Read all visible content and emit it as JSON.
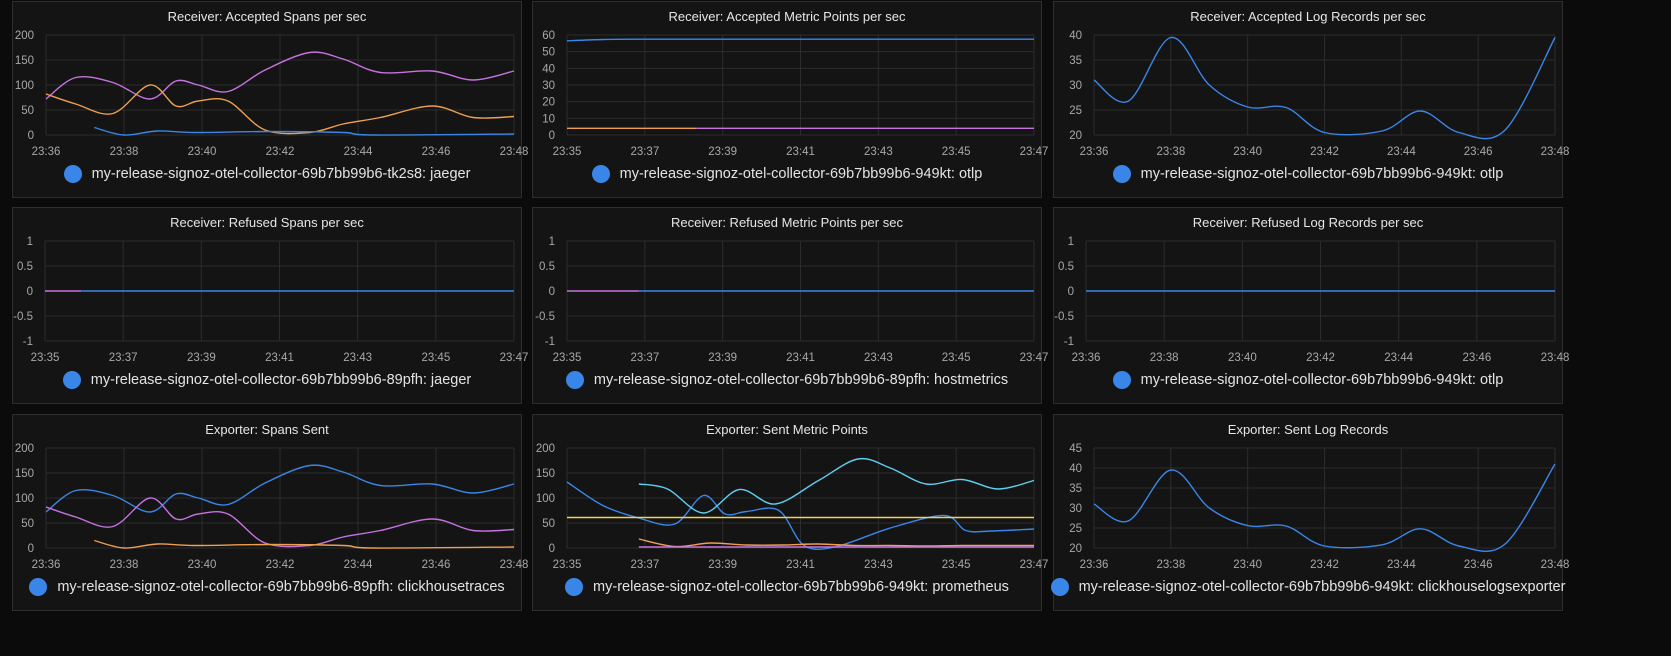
{
  "colors": {
    "blue": "#3a86e8",
    "purple": "#c673e0",
    "orange": "#eea04e",
    "cyan": "#5ed0f0",
    "yellow": "#f5d14b",
    "grid": "#2c2c2e"
  },
  "panels": [
    {
      "id": "accepted-spans",
      "title": "Receiver: Accepted Spans per sec",
      "legend": {
        "label": "my-release-signoz-otel-collector-69b7bb99b6-tk2s8: jaeger",
        "color": "#3a86e8"
      },
      "chart_data": {
        "type": "line",
        "title": "Receiver: Accepted Spans per sec",
        "y_ticks": [
          "200",
          "150",
          "100",
          "50",
          "0"
        ],
        "ylim": [
          0,
          200
        ],
        "x_ticks": [
          "23:36",
          "23:38",
          "23:40",
          "23:42",
          "23:44",
          "23:46",
          "23:48"
        ],
        "xlim": [
          0,
          12.6
        ],
        "series": [
          {
            "color": "#c673e0",
            "x": [
              0,
              0.8,
              1.8,
              2.8,
              3.5,
              4.1,
              4.9,
              5.9,
              7.1,
              8.0,
              9.0,
              10.4,
              11.5,
              12.6
            ],
            "y": [
              72,
              115,
              105,
              72,
              108,
              100,
              87,
              130,
              165,
              152,
              125,
              128,
              110,
              128
            ]
          },
          {
            "color": "#eea04e",
            "x": [
              0,
              0.8,
              1.8,
              2.8,
              3.5,
              4.1,
              4.9,
              5.9,
              7.1,
              8.0,
              9.0,
              10.4,
              11.5,
              12.6
            ],
            "y": [
              82,
              62,
              43,
              100,
              58,
              68,
              68,
              10,
              5,
              22,
              35,
              58,
              35,
              37
            ]
          },
          {
            "color": "#3a86e8",
            "x": [
              1.3,
              2.1,
              3.0,
              4.0,
              6.0,
              8.0,
              8.8,
              12.6
            ],
            "y": [
              15,
              0,
              8,
              5,
              7,
              5,
              0,
              2
            ]
          }
        ]
      }
    },
    {
      "id": "accepted-metric-points",
      "title": "Receiver: Accepted Metric Points per sec",
      "legend": {
        "label": "my-release-signoz-otel-collector-69b7bb99b6-949kt: otlp",
        "color": "#3a86e8"
      },
      "chart_data": {
        "type": "line",
        "title": "Receiver: Accepted Metric Points per sec",
        "y_ticks": [
          "60",
          "50",
          "40",
          "30",
          "20",
          "10",
          "0"
        ],
        "ylim": [
          0,
          60
        ],
        "x_ticks": [
          "23:35",
          "23:37",
          "23:39",
          "23:41",
          "23:43",
          "23:45",
          "23:47"
        ],
        "xlim": [
          0,
          13
        ],
        "series": [
          {
            "color": "#3a86e8",
            "x": [
              0,
              1,
              2,
              4,
              13
            ],
            "y": [
              56.5,
              57.3,
              57.5,
              57.5,
              57.5
            ]
          },
          {
            "color": "#eea04e",
            "x": [
              0,
              3.6
            ],
            "y": [
              4,
              4
            ]
          },
          {
            "color": "#c673e0",
            "x": [
              3.6,
              13
            ],
            "y": [
              4,
              4
            ]
          }
        ]
      }
    },
    {
      "id": "accepted-log-records",
      "title": "Receiver: Accepted Log Records per sec",
      "legend": {
        "label": "my-release-signoz-otel-collector-69b7bb99b6-949kt: otlp",
        "color": "#3a86e8"
      },
      "chart_data": {
        "type": "line",
        "title": "Receiver: Accepted Log Records per sec",
        "y_ticks": [
          "40",
          "35",
          "30",
          "25",
          "20"
        ],
        "ylim": [
          20,
          40
        ],
        "x_ticks": [
          "23:36",
          "23:38",
          "23:40",
          "23:42",
          "23:44",
          "23:46",
          "23:48"
        ],
        "xlim": [
          0,
          12
        ],
        "series": [
          {
            "color": "#3a86e8",
            "x": [
              0,
              0.9,
              2,
              3,
              4,
              5,
              6,
              7.5,
              8.5,
              9.5,
              10.7,
              12
            ],
            "y": [
              31,
              26.8,
              39.5,
              30,
              25.6,
              25.5,
              20.5,
              20.8,
              24.8,
              20.5,
              21,
              39.5
            ]
          }
        ]
      }
    },
    {
      "id": "refused-spans",
      "title": "Receiver: Refused Spans per sec",
      "legend": {
        "label": "my-release-signoz-otel-collector-69b7bb99b6-89pfh: jaeger",
        "color": "#3a86e8"
      },
      "chart_data": {
        "type": "line",
        "title": "Receiver: Refused Spans per sec",
        "y_ticks": [
          "1",
          "0.5",
          "0",
          "-0.5",
          "-1"
        ],
        "ylim": [
          -1,
          1
        ],
        "x_ticks": [
          "23:35",
          "23:37",
          "23:39",
          "23:41",
          "23:43",
          "23:45",
          "23:47"
        ],
        "xlim": [
          0,
          13
        ],
        "series": [
          {
            "color": "#c673e0",
            "x": [
              0,
              1
            ],
            "y": [
              0,
              0
            ]
          },
          {
            "color": "#3a86e8",
            "x": [
              1,
              13
            ],
            "y": [
              0,
              0
            ]
          }
        ]
      }
    },
    {
      "id": "refused-metric-points",
      "title": "Receiver: Refused Metric Points per sec",
      "legend": {
        "label": "my-release-signoz-otel-collector-69b7bb99b6-89pfh: hostmetrics",
        "color": "#3a86e8"
      },
      "chart_data": {
        "type": "line",
        "title": "Receiver: Refused Metric Points per sec",
        "y_ticks": [
          "1",
          "0.5",
          "0",
          "-0.5",
          "-1"
        ],
        "ylim": [
          -1,
          1
        ],
        "x_ticks": [
          "23:35",
          "23:37",
          "23:39",
          "23:41",
          "23:43",
          "23:45",
          "23:47"
        ],
        "xlim": [
          0,
          13
        ],
        "series": [
          {
            "color": "#c673e0",
            "x": [
              0,
              2
            ],
            "y": [
              0,
              0
            ]
          },
          {
            "color": "#3a86e8",
            "x": [
              2,
              13
            ],
            "y": [
              0,
              0
            ]
          }
        ]
      }
    },
    {
      "id": "refused-log-records",
      "title": "Receiver: Refused Log Records per sec",
      "legend": {
        "label": "my-release-signoz-otel-collector-69b7bb99b6-949kt: otlp",
        "color": "#3a86e8"
      },
      "chart_data": {
        "type": "line",
        "title": "Receiver: Refused Log Records per sec",
        "y_ticks": [
          "1",
          "0.5",
          "0",
          "-0.5",
          "-1"
        ],
        "ylim": [
          -1,
          1
        ],
        "x_ticks": [
          "23:36",
          "23:38",
          "23:40",
          "23:42",
          "23:44",
          "23:46",
          "23:48"
        ],
        "xlim": [
          0,
          12
        ],
        "series": [
          {
            "color": "#3a86e8",
            "x": [
              0,
              12
            ],
            "y": [
              0,
              0
            ]
          }
        ]
      }
    },
    {
      "id": "spans-sent",
      "title": "Exporter: Spans Sent",
      "legend": {
        "label": "my-release-signoz-otel-collector-69b7bb99b6-89pfh: clickhousetraces",
        "color": "#3a86e8"
      },
      "chart_data": {
        "type": "line",
        "title": "Exporter: Spans Sent",
        "y_ticks": [
          "200",
          "150",
          "100",
          "50",
          "0"
        ],
        "ylim": [
          0,
          200
        ],
        "x_ticks": [
          "23:36",
          "23:38",
          "23:40",
          "23:42",
          "23:44",
          "23:46",
          "23:48"
        ],
        "xlim": [
          0,
          12.6
        ],
        "series": [
          {
            "color": "#3a86e8",
            "x": [
              0,
              0.8,
              1.8,
              2.8,
              3.5,
              4.1,
              4.9,
              5.9,
              7.1,
              8.0,
              9.0,
              10.4,
              11.5,
              12.6
            ],
            "y": [
              72,
              115,
              105,
              72,
              108,
              100,
              87,
              130,
              165,
              152,
              125,
              128,
              110,
              128
            ]
          },
          {
            "color": "#c673e0",
            "x": [
              0,
              0.8,
              1.8,
              2.8,
              3.5,
              4.1,
              4.9,
              5.9,
              7.1,
              8.0,
              9.0,
              10.4,
              11.5,
              12.6
            ],
            "y": [
              82,
              62,
              43,
              100,
              58,
              68,
              68,
              10,
              5,
              22,
              35,
              58,
              35,
              37
            ]
          },
          {
            "color": "#eea04e",
            "x": [
              1.3,
              2.1,
              3.0,
              4.0,
              6.0,
              8.0,
              8.8,
              12.6
            ],
            "y": [
              15,
              0,
              8,
              5,
              7,
              5,
              0,
              2
            ]
          }
        ]
      }
    },
    {
      "id": "sent-metric-points",
      "title": "Exporter: Sent Metric Points",
      "legend": {
        "label": "my-release-signoz-otel-collector-69b7bb99b6-949kt: prometheus",
        "color": "#3a86e8"
      },
      "chart_data": {
        "type": "line",
        "title": "Exporter: Sent Metric Points",
        "y_ticks": [
          "200",
          "150",
          "100",
          "50",
          "0"
        ],
        "ylim": [
          0,
          200
        ],
        "x_ticks": [
          "23:35",
          "23:37",
          "23:39",
          "23:41",
          "23:43",
          "23:45",
          "23:47"
        ],
        "xlim": [
          0,
          13
        ],
        "series": [
          {
            "color": "#3a86e8",
            "x": [
              0,
              1,
              2,
              3,
              3.8,
              4.4,
              5.0,
              5.9,
              6.6,
              7.5,
              9.0,
              10.5,
              11.1,
              11.8,
              13
            ],
            "y": [
              132,
              85,
              60,
              48,
              105,
              68,
              73,
              75,
              5,
              3,
              40,
              65,
              35,
              34,
              38
            ]
          },
          {
            "color": "#5ed0f0",
            "x": [
              2,
              2.8,
              3.8,
              4.8,
              5.8,
              7.0,
              8.1,
              9.0,
              10.0,
              11.0,
              12.0,
              13
            ],
            "y": [
              128,
              118,
              70,
              117,
              88,
              135,
              178,
              160,
              128,
              137,
              118,
              135
            ]
          },
          {
            "color": "#f5d14b",
            "x": [
              0,
              13
            ],
            "y": [
              61,
              61
            ]
          },
          {
            "color": "#eea04e",
            "x": [
              2,
              3,
              4,
              5,
              6,
              7,
              8,
              9,
              10,
              11,
              12,
              13
            ],
            "y": [
              18,
              3,
              10,
              6,
              6,
              8,
              5,
              5,
              4,
              5,
              5,
              5
            ]
          },
          {
            "color": "#c673e0",
            "x": [
              2,
              13
            ],
            "y": [
              2,
              2
            ]
          }
        ]
      }
    },
    {
      "id": "sent-log-records",
      "title": "Exporter: Sent Log Records",
      "legend": {
        "label": "my-release-signoz-otel-collector-69b7bb99b6-949kt: clickhouselogsexporter",
        "color": "#3a86e8"
      },
      "chart_data": {
        "type": "line",
        "title": "Exporter: Sent Log Records",
        "y_ticks": [
          "45",
          "40",
          "35",
          "30",
          "25",
          "20"
        ],
        "ylim": [
          20,
          45
        ],
        "x_ticks": [
          "23:36",
          "23:38",
          "23:40",
          "23:42",
          "23:44",
          "23:46",
          "23:48"
        ],
        "xlim": [
          0,
          12
        ],
        "series": [
          {
            "color": "#3a86e8",
            "x": [
              0,
              0.9,
              2,
              3,
              4,
              5,
              6,
              7.5,
              8.5,
              9.5,
              10.7,
              12
            ],
            "y": [
              31,
              26.8,
              39.5,
              30,
              25.6,
              25.5,
              20.5,
              20.8,
              24.8,
              20.5,
              21,
              41
            ]
          }
        ]
      }
    }
  ]
}
